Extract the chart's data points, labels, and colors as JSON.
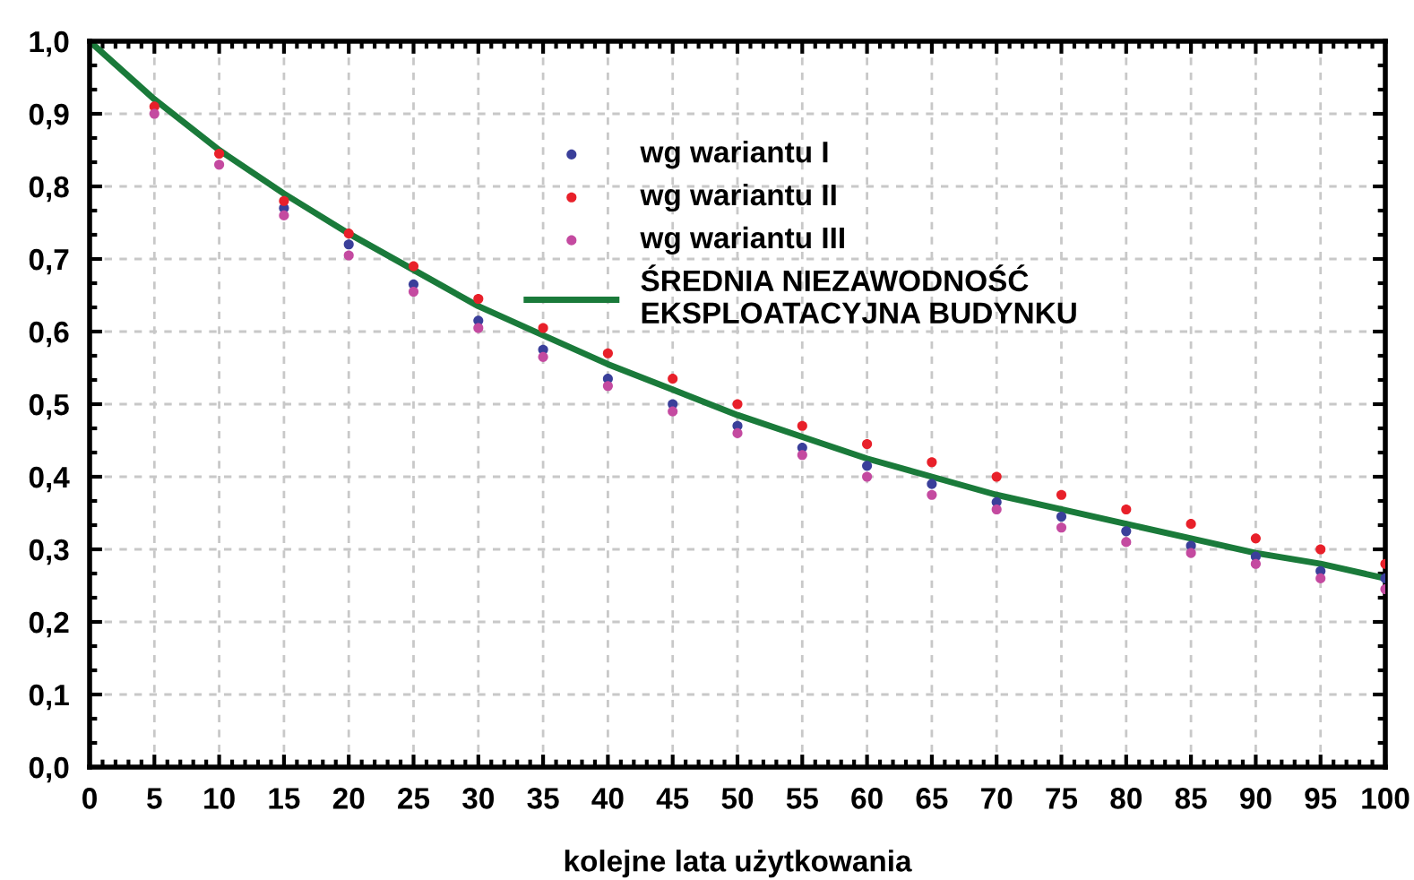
{
  "chart_data": {
    "type": "scatter",
    "xlabel": "kolejne lata użytkowania",
    "x": [
      5,
      10,
      15,
      20,
      25,
      30,
      35,
      40,
      45,
      50,
      55,
      60,
      65,
      70,
      75,
      80,
      85,
      90,
      95,
      100
    ],
    "series": [
      {
        "name": "wg wariantu I",
        "marker": "circle",
        "color": "#3a3f9a",
        "values": [
          null,
          null,
          0.77,
          0.72,
          0.665,
          0.615,
          0.575,
          0.535,
          0.5,
          0.47,
          0.44,
          0.415,
          0.39,
          0.365,
          0.345,
          0.325,
          0.305,
          0.29,
          0.27,
          0.26
        ]
      },
      {
        "name": "wg wariantu II",
        "marker": "circle",
        "color": "#e8202a",
        "values": [
          0.91,
          0.845,
          0.78,
          0.735,
          0.69,
          0.645,
          0.605,
          0.57,
          0.535,
          0.5,
          0.47,
          0.445,
          0.42,
          0.4,
          0.375,
          0.355,
          0.335,
          0.315,
          0.3,
          0.28
        ]
      },
      {
        "name": "wg wariantu III",
        "marker": "circle",
        "color": "#c44aa0",
        "values": [
          0.9,
          0.83,
          0.76,
          0.705,
          0.655,
          0.605,
          0.565,
          0.525,
          0.49,
          0.46,
          0.43,
          0.4,
          0.375,
          0.355,
          0.33,
          0.31,
          0.295,
          0.28,
          0.26,
          0.245
        ]
      },
      {
        "name": "ŚREDNIA NIEZAWODNOŚĆ\nEKSPLOATACYJNA BUDYNKU",
        "type": "line",
        "marker": "none",
        "color": "#1a7a3a",
        "x": [
          0,
          5,
          10,
          15,
          20,
          25,
          30,
          35,
          40,
          45,
          50,
          55,
          60,
          65,
          70,
          75,
          80,
          85,
          90,
          95,
          100
        ],
        "values": [
          1.0,
          0.92,
          0.85,
          0.79,
          0.735,
          0.685,
          0.635,
          0.595,
          0.555,
          0.52,
          0.485,
          0.455,
          0.425,
          0.4,
          0.375,
          0.355,
          0.335,
          0.315,
          0.295,
          0.28,
          0.26
        ]
      }
    ],
    "xlim": [
      0,
      100
    ],
    "xticks": [
      0,
      5,
      10,
      15,
      20,
      25,
      30,
      35,
      40,
      45,
      50,
      55,
      60,
      65,
      70,
      75,
      80,
      85,
      90,
      95,
      100
    ],
    "ylim": [
      0,
      1
    ],
    "yticks": [
      {
        "value": 0,
        "label": "0,0"
      },
      {
        "value": 0.1,
        "label": "0,1"
      },
      {
        "value": 0.2,
        "label": "0,2"
      },
      {
        "value": 0.3,
        "label": "0,3"
      },
      {
        "value": 0.4,
        "label": "0,4"
      },
      {
        "value": 0.5,
        "label": "0,5"
      },
      {
        "value": 0.6,
        "label": "0,6"
      },
      {
        "value": 0.7,
        "label": "0,7"
      },
      {
        "value": 0.8,
        "label": "0,8"
      },
      {
        "value": 0.9,
        "label": "0,9"
      },
      {
        "value": 1,
        "label": "1,0"
      }
    ],
    "grid": true,
    "legend": "top"
  }
}
